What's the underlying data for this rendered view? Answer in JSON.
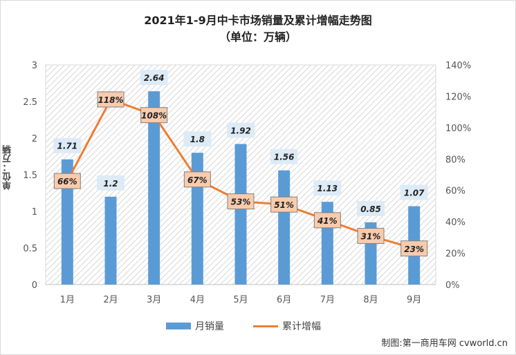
{
  "chart_data": {
    "type": "bar",
    "title": "2021年1-9月中卡市场销量及累计增幅走势图",
    "subtitle": "（单位：万辆）",
    "ylabel": "单位：万辆",
    "categories": [
      "1月",
      "2月",
      "3月",
      "4月",
      "5月",
      "6月",
      "7月",
      "8月",
      "9月"
    ],
    "series": [
      {
        "name": "月销量",
        "type": "bar",
        "axis": "left",
        "color": "#5b9bd5",
        "values": [
          1.71,
          1.2,
          2.64,
          1.8,
          1.92,
          1.56,
          1.13,
          0.85,
          1.07
        ],
        "labels": [
          "1.71",
          "1.2",
          "2.64",
          "1.8",
          "1.92",
          "1.56",
          "1.13",
          "0.85",
          "1.07"
        ]
      },
      {
        "name": "累计增幅",
        "type": "line",
        "axis": "right",
        "color": "#ed7d31",
        "values": [
          66,
          118,
          108,
          67,
          53,
          51,
          41,
          31,
          23
        ],
        "labels": [
          "66%",
          "118%",
          "108%",
          "67%",
          "53%",
          "51%",
          "41%",
          "31%",
          "23%"
        ]
      }
    ],
    "ylim": [
      0,
      3
    ],
    "y_ticks": [
      "0",
      "0.5",
      "1",
      "1.5",
      "2",
      "2.5",
      "3"
    ],
    "y2lim": [
      0,
      140
    ],
    "y2_ticks": [
      "0%",
      "20%",
      "40%",
      "60%",
      "80%",
      "100%",
      "120%",
      "140%"
    ],
    "legend": "bottom",
    "grid": false
  },
  "credit": "制图:第一商用车网 cvworld.cn"
}
